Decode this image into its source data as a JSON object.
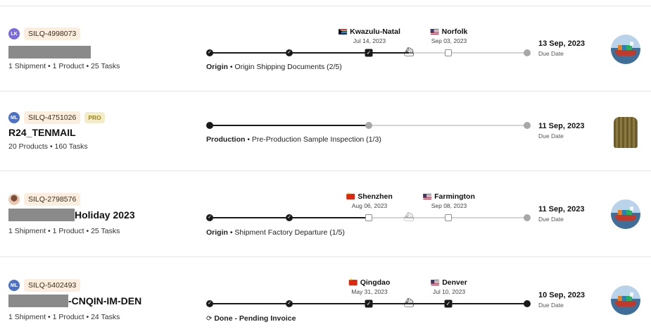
{
  "rows": [
    {
      "id": "SILQ-4998073",
      "avatar": "LK",
      "title_suffix": "",
      "meta": "1 Shipment • 1 Product • 25 Tasks",
      "origin": {
        "name": "Kwazulu-Natal",
        "date": "Jul 14, 2023",
        "flag": "za"
      },
      "destination": {
        "name": "Norfolk",
        "date": "Sep 03, 2023",
        "flag": "us"
      },
      "stage_bold": "Origin",
      "stage_text": " • Origin Shipping Documents (2/5)",
      "due_date": "13 Sep, 2023",
      "due_label": "Due Date",
      "thumbnail": "ship-image"
    },
    {
      "id": "SILQ-4751026",
      "avatar": "ML",
      "pro": "PRO",
      "title": "R24_TENMAIL",
      "meta": "20 Products • 160 Tasks",
      "stage_bold": "Production",
      "stage_text": " • Pre-Production Sample Inspection (1/3)",
      "due_date": "11 Sep, 2023",
      "due_label": "Due Date",
      "thumbnail": "product-image"
    },
    {
      "id": "SILQ-2798576",
      "avatar": "photo",
      "title_suffix": "Holiday 2023",
      "meta": "1 Shipment • 1 Product • 25 Tasks",
      "origin": {
        "name": "Shenzhen",
        "date": "Aug 06, 2023",
        "flag": "cn"
      },
      "destination": {
        "name": "Farmington",
        "date": "Sep 08, 2023",
        "flag": "us"
      },
      "stage_bold": "Origin",
      "stage_text": " • Shipment Factory Departure (1/5)",
      "due_date": "11 Sep, 2023",
      "due_label": "Due Date",
      "thumbnail": "ship-image"
    },
    {
      "id": "SILQ-5402493",
      "avatar": "ML",
      "title_suffix": "-CNQIN-IM-DEN",
      "meta": "1 Shipment • 1 Product • 24 Tasks",
      "origin": {
        "name": "Qingdao",
        "date": "May 31, 2023",
        "flag": "cn"
      },
      "destination": {
        "name": "Denver",
        "date": "Jul 10, 2023",
        "flag": "us"
      },
      "stage_bold": "Done - Pending Invoice",
      "stage_text": "",
      "due_date": "10 Sep, 2023",
      "due_label": "Due Date",
      "thumbnail": "ship-image"
    }
  ],
  "icons": {
    "ship": "ship-icon",
    "check": "check-icon",
    "done": "dollar-cycle-icon"
  }
}
